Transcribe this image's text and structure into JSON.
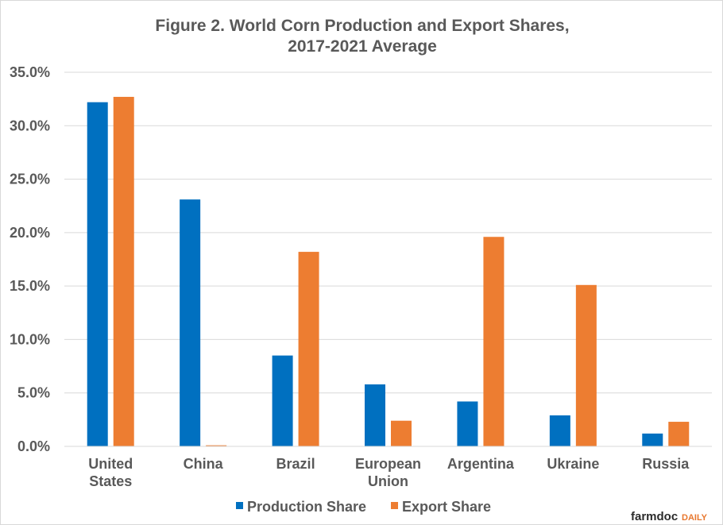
{
  "chart_data": {
    "type": "bar",
    "title_lines": [
      "Figure  2. World Corn Production  and Export Shares,",
      "2017-2021  Average"
    ],
    "categories": [
      [
        "United",
        "States"
      ],
      [
        "China"
      ],
      [
        "Brazil"
      ],
      [
        "European",
        "Union"
      ],
      [
        "Argentina"
      ],
      [
        "Ukraine"
      ],
      [
        "Russia"
      ]
    ],
    "series": [
      {
        "name": "Production Share",
        "color": "#0070c0",
        "values": [
          32.2,
          23.1,
          8.5,
          5.8,
          4.2,
          2.9,
          1.2
        ]
      },
      {
        "name": "Export Share",
        "color": "#ed7d31",
        "values": [
          32.7,
          0.1,
          18.2,
          2.4,
          19.6,
          15.1,
          2.3
        ]
      }
    ],
    "ylim": [
      0,
      35
    ],
    "ytick_step": 5,
    "ytick_labels": [
      "0.0%",
      "5.0%",
      "10.0%",
      "15.0%",
      "20.0%",
      "25.0%",
      "30.0%",
      "35.0%"
    ],
    "xlabel": "",
    "ylabel": "",
    "grid": true,
    "legend_position": "bottom"
  },
  "branding": {
    "logo_main": "farmdoc",
    "logo_accent": "DAILY"
  }
}
